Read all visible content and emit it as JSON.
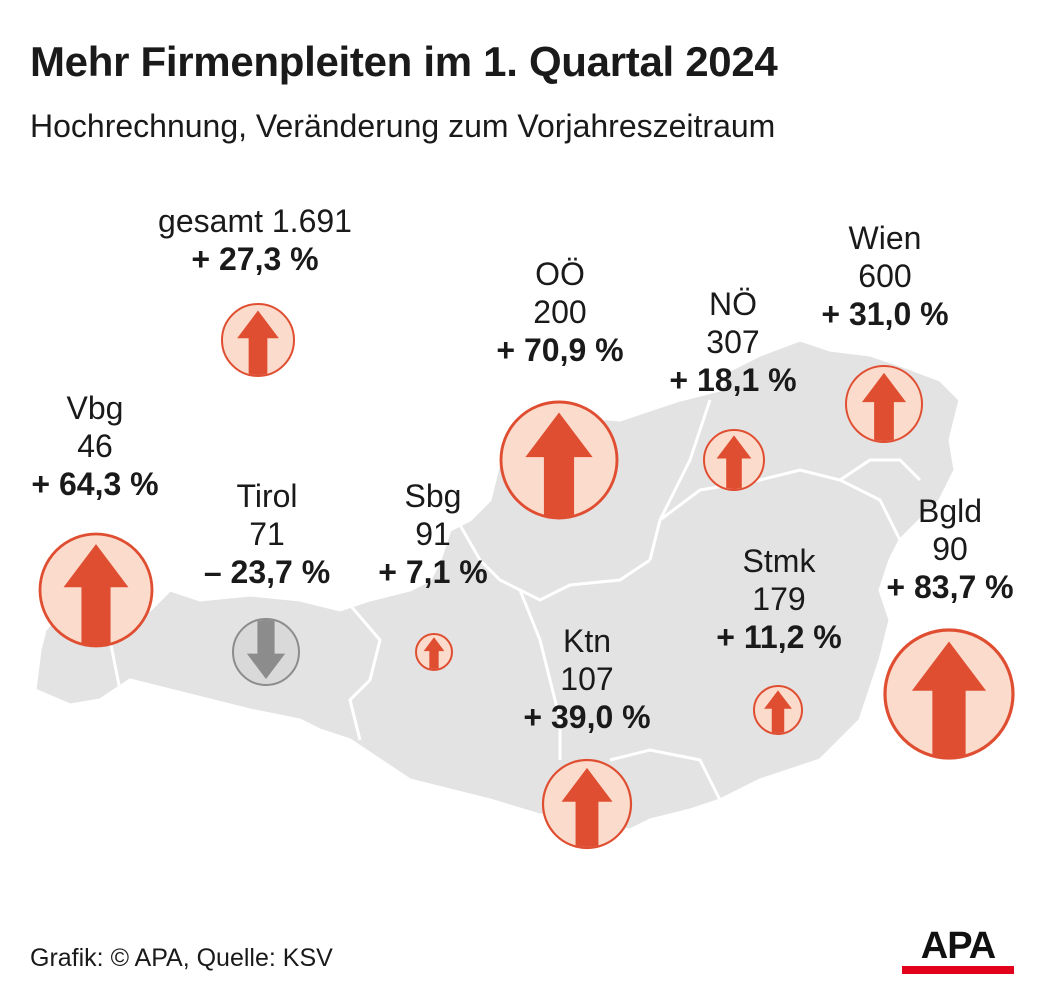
{
  "header": {
    "title": "Mehr Firmenpleiten im 1. Quartal 2024",
    "subtitle": "Hochrechnung, Veränderung zum Vorjahreszeitraum"
  },
  "colors": {
    "map_fill": "#e3e3e3",
    "border": "#ffffff",
    "increase_fill": "#fbdccc",
    "increase_arrow": "#e04e32",
    "decrease_fill": "#d9d9d9",
    "decrease_arrow": "#8c8c8c",
    "brand_red": "#e2001a"
  },
  "chart_data": {
    "type": "map",
    "total": {
      "label": "gesamt 1.691",
      "change_label": "+ 27,3 %",
      "change": 27.3,
      "direction": "up"
    },
    "regions": [
      {
        "name": "Vbg",
        "count": "46",
        "change_label": "+ 64,3 %",
        "change": 64.3,
        "direction": "up"
      },
      {
        "name": "Tirol",
        "count": "71",
        "change_label": "– 23,7 %",
        "change": -23.7,
        "direction": "down"
      },
      {
        "name": "Sbg",
        "count": "91",
        "change_label": "+ 7,1 %",
        "change": 7.1,
        "direction": "up"
      },
      {
        "name": "OÖ",
        "count": "200",
        "change_label": "+ 70,9 %",
        "change": 70.9,
        "direction": "up"
      },
      {
        "name": "NÖ",
        "count": "307",
        "change_label": "+ 18,1 %",
        "change": 18.1,
        "direction": "up"
      },
      {
        "name": "Wien",
        "count": "600",
        "change_label": "+ 31,0 %",
        "change": 31.0,
        "direction": "up"
      },
      {
        "name": "Bgld",
        "count": "90",
        "change_label": "+ 83,7 %",
        "change": 83.7,
        "direction": "up"
      },
      {
        "name": "Stmk",
        "count": "179",
        "change_label": "+ 11,2 %",
        "change": 11.2,
        "direction": "up"
      },
      {
        "name": "Ktn",
        "count": "107",
        "change_label": "+ 39,0 %",
        "change": 39.0,
        "direction": "up"
      }
    ]
  },
  "footer": {
    "credit": "Grafik: © APA, Quelle: KSV",
    "logo": "APA"
  }
}
